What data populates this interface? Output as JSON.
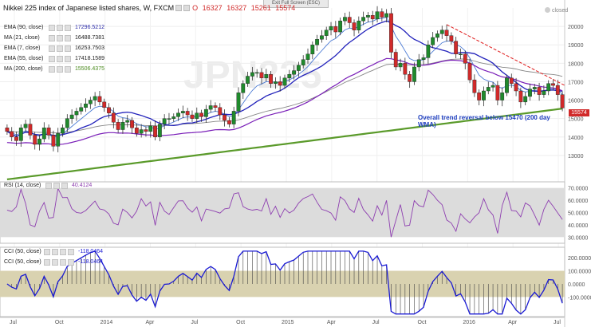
{
  "header": {
    "title": "Nikkei 225 index of Japanese listed shares, W, FXCM",
    "ohlc_label": "O",
    "open": "16327",
    "high": "16327",
    "low": "15261",
    "close": "15574",
    "exit_label": "Exit Full Screen (ESC)",
    "status": "closed"
  },
  "legend": [
    {
      "label": "EMA (90, close)",
      "value": "17296.5212",
      "color": "#2a2aa8"
    },
    {
      "label": "MA (21, close)",
      "value": "16488.7381",
      "color": "#333333"
    },
    {
      "label": "EMA (7, close)",
      "value": "16253.7503",
      "color": "#333333"
    },
    {
      "label": "EMA (55, close)",
      "value": "17418.1589",
      "color": "#333333"
    },
    {
      "label": "MA (200, close)",
      "value": "15506.4375",
      "color": "#4a8a1e"
    }
  ],
  "rsi_legend": {
    "label": "RSI (14, close)",
    "value": "40.4124",
    "color": "#8e3fb0"
  },
  "cci_legend": [
    {
      "label": "CCI (50, close)",
      "value": "-118.0464",
      "color": "#1a1ad4"
    },
    {
      "label": "CCI (50, close)",
      "value": "-118.0464",
      "color": "#1a1ad4"
    }
  ],
  "annotation": "Overall trend reversal below 15470 (200 day WMA)",
  "price_tag": "15574",
  "colors": {
    "up": "#1f8a2c",
    "down": "#d12a2a",
    "ema90": "#7a1fb8",
    "ma21": "#2222bb",
    "ema7": "#4a7ad4",
    "ema55": "#888888",
    "ma200": "#5a9a2a",
    "rsi": "#8e3fb0",
    "cci": "#1a1ad4",
    "trend": "#e02020",
    "band": "#d9d2b0"
  },
  "chart_data": {
    "type": "candlestick",
    "x_ticks": [
      "Jul",
      "Oct",
      "2014",
      "Apr",
      "Jul",
      "Oct",
      "2015",
      "Apr",
      "Jul",
      "Oct",
      "2016",
      "Apr",
      "Jul"
    ],
    "y_ticks": [
      13000,
      14000,
      15000,
      16000,
      17000,
      18000,
      19000,
      20000
    ],
    "ylim": [
      12000,
      21000
    ],
    "close_series": [
      14300,
      14000,
      13800,
      14500,
      14700,
      14100,
      13600,
      13900,
      14500,
      14100,
      13500,
      14200,
      14500,
      15000,
      15200,
      15400,
      15600,
      15800,
      16000,
      16200,
      15900,
      15600,
      15300,
      14800,
      14400,
      14800,
      14900,
      14500,
      14200,
      14400,
      14300,
      14600,
      14000,
      14700,
      15000,
      15000,
      15100,
      15300,
      15400,
      15200,
      15000,
      15300,
      15100,
      15500,
      15700,
      15600,
      15200,
      14900,
      14700,
      15400,
      16400,
      16900,
      17300,
      17500,
      17500,
      17200,
      17400,
      16900,
      17000,
      16800,
      17200,
      17400,
      17600,
      17900,
      18200,
      18500,
      19000,
      19300,
      19500,
      19800,
      20000,
      19700,
      20300,
      20500,
      20200,
      19800,
      20300,
      20500,
      20600,
      20400,
      20800,
      20500,
      20700,
      18600,
      17800,
      18000,
      17400,
      17000,
      17800,
      18200,
      18300,
      19000,
      19400,
      19600,
      19800,
      19500,
      19200,
      18500,
      18500,
      18000,
      17100,
      16400,
      16000,
      16500,
      16700,
      16800,
      16000,
      16400,
      17200,
      16900,
      16500,
      15900,
      16200,
      16600,
      16700,
      16300,
      16500,
      16900,
      16800,
      16300,
      15574
    ],
    "ema90": {
      "label": "EMA (90, close)",
      "last": 17296.5212
    },
    "ma21": {
      "label": "MA (21, close)",
      "last": 16488.7381
    },
    "ema7": {
      "label": "EMA (7, close)",
      "last": 16253.7503
    },
    "ema55": {
      "label": "EMA (55, close)",
      "last": 17418.1589
    },
    "ma200": {
      "label": "MA (200, close)",
      "last": 15506.4375
    },
    "trendline": [
      [
        20100,
        17000
      ]
    ],
    "rsi": {
      "label": "RSI (14, close)",
      "ticks": [
        30,
        40,
        50,
        60,
        70
      ],
      "ylim": [
        25,
        75
      ],
      "last": 40.4124
    },
    "cci": {
      "label": "CCI (50, close)",
      "ticks": [
        200,
        100,
        0,
        -100
      ],
      "tick_labels": [
        "200.0000",
        "100.0000",
        "0.0000",
        "-100.0000"
      ],
      "ylim": [
        -250,
        280
      ],
      "last": -118.0464
    }
  }
}
